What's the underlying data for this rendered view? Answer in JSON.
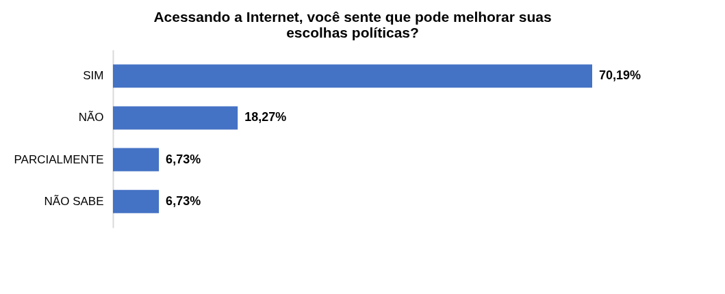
{
  "chart_data": {
    "type": "bar",
    "orientation": "horizontal",
    "title": "Acessando  a Internet, você sente que pode melhorar suas escolhas políticas?",
    "categories": [
      "SIM",
      "NÃO",
      "PARCIALMENTE",
      "NÃO SABE"
    ],
    "values": [
      70.19,
      18.27,
      6.73,
      6.73
    ],
    "value_labels": [
      "70,19%",
      "18,27%",
      "6,73%",
      "6,73%"
    ],
    "color": "#4472c4"
  }
}
